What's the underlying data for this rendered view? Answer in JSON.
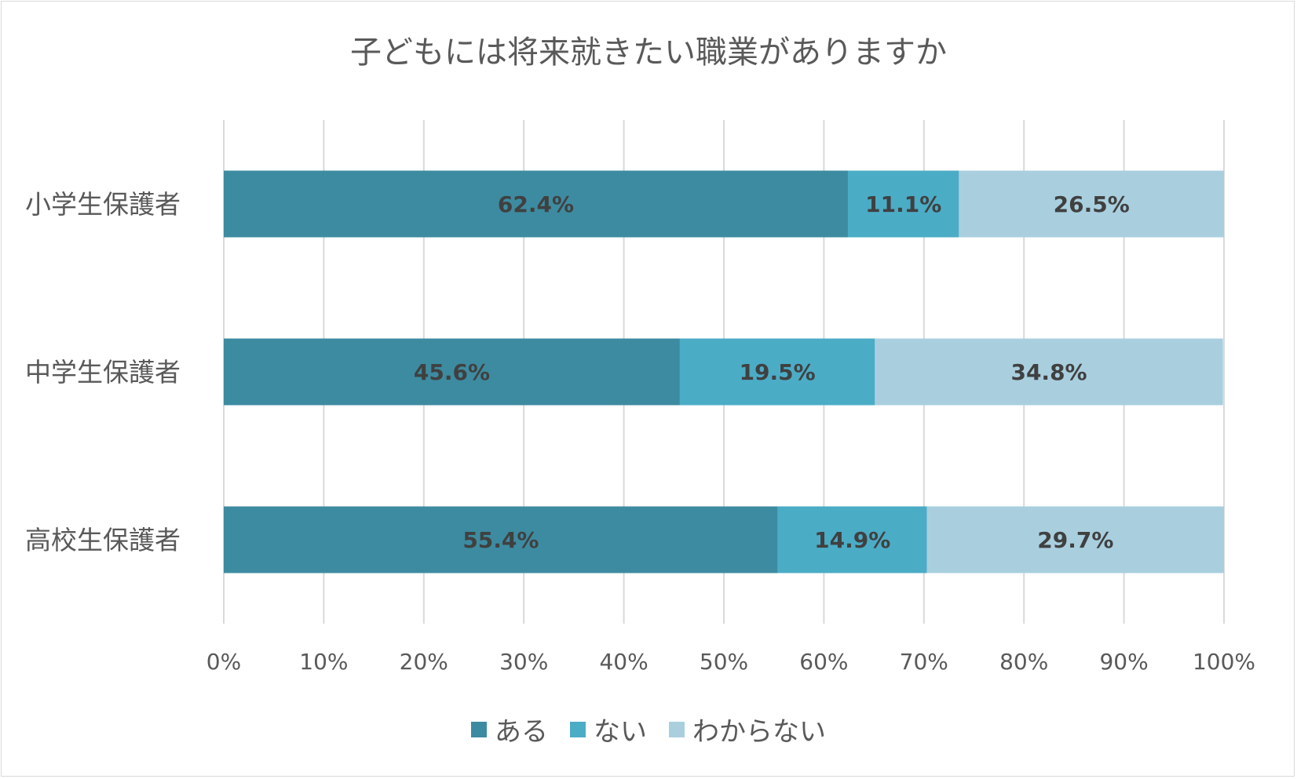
{
  "chart_data": {
    "type": "bar",
    "orientation": "horizontal",
    "stacked": "percent",
    "title": "子どもには将来就きたい職業がありますか",
    "categories": [
      "小学生保護者",
      "中学生保護者",
      "高校生保護者"
    ],
    "series": [
      {
        "name": "ある",
        "color": "#3d8ba1",
        "values": [
          62.4,
          45.6,
          55.4
        ],
        "labels": [
          "62.4%",
          "45.6%",
          "55.4%"
        ]
      },
      {
        "name": "ない",
        "color": "#4bacc6",
        "values": [
          11.1,
          19.5,
          14.9
        ],
        "labels": [
          "11.1%",
          "19.5%",
          "14.9%"
        ]
      },
      {
        "name": "わからない",
        "color": "#a9cfdf",
        "values": [
          26.5,
          34.8,
          29.7
        ],
        "labels": [
          "26.5%",
          "34.8%",
          "29.7%"
        ]
      }
    ],
    "xlim": [
      0,
      100
    ],
    "xticks": [
      "0%",
      "10%",
      "20%",
      "30%",
      "40%",
      "50%",
      "60%",
      "70%",
      "80%",
      "90%",
      "100%"
    ],
    "grid": true,
    "legend_position": "bottom"
  }
}
